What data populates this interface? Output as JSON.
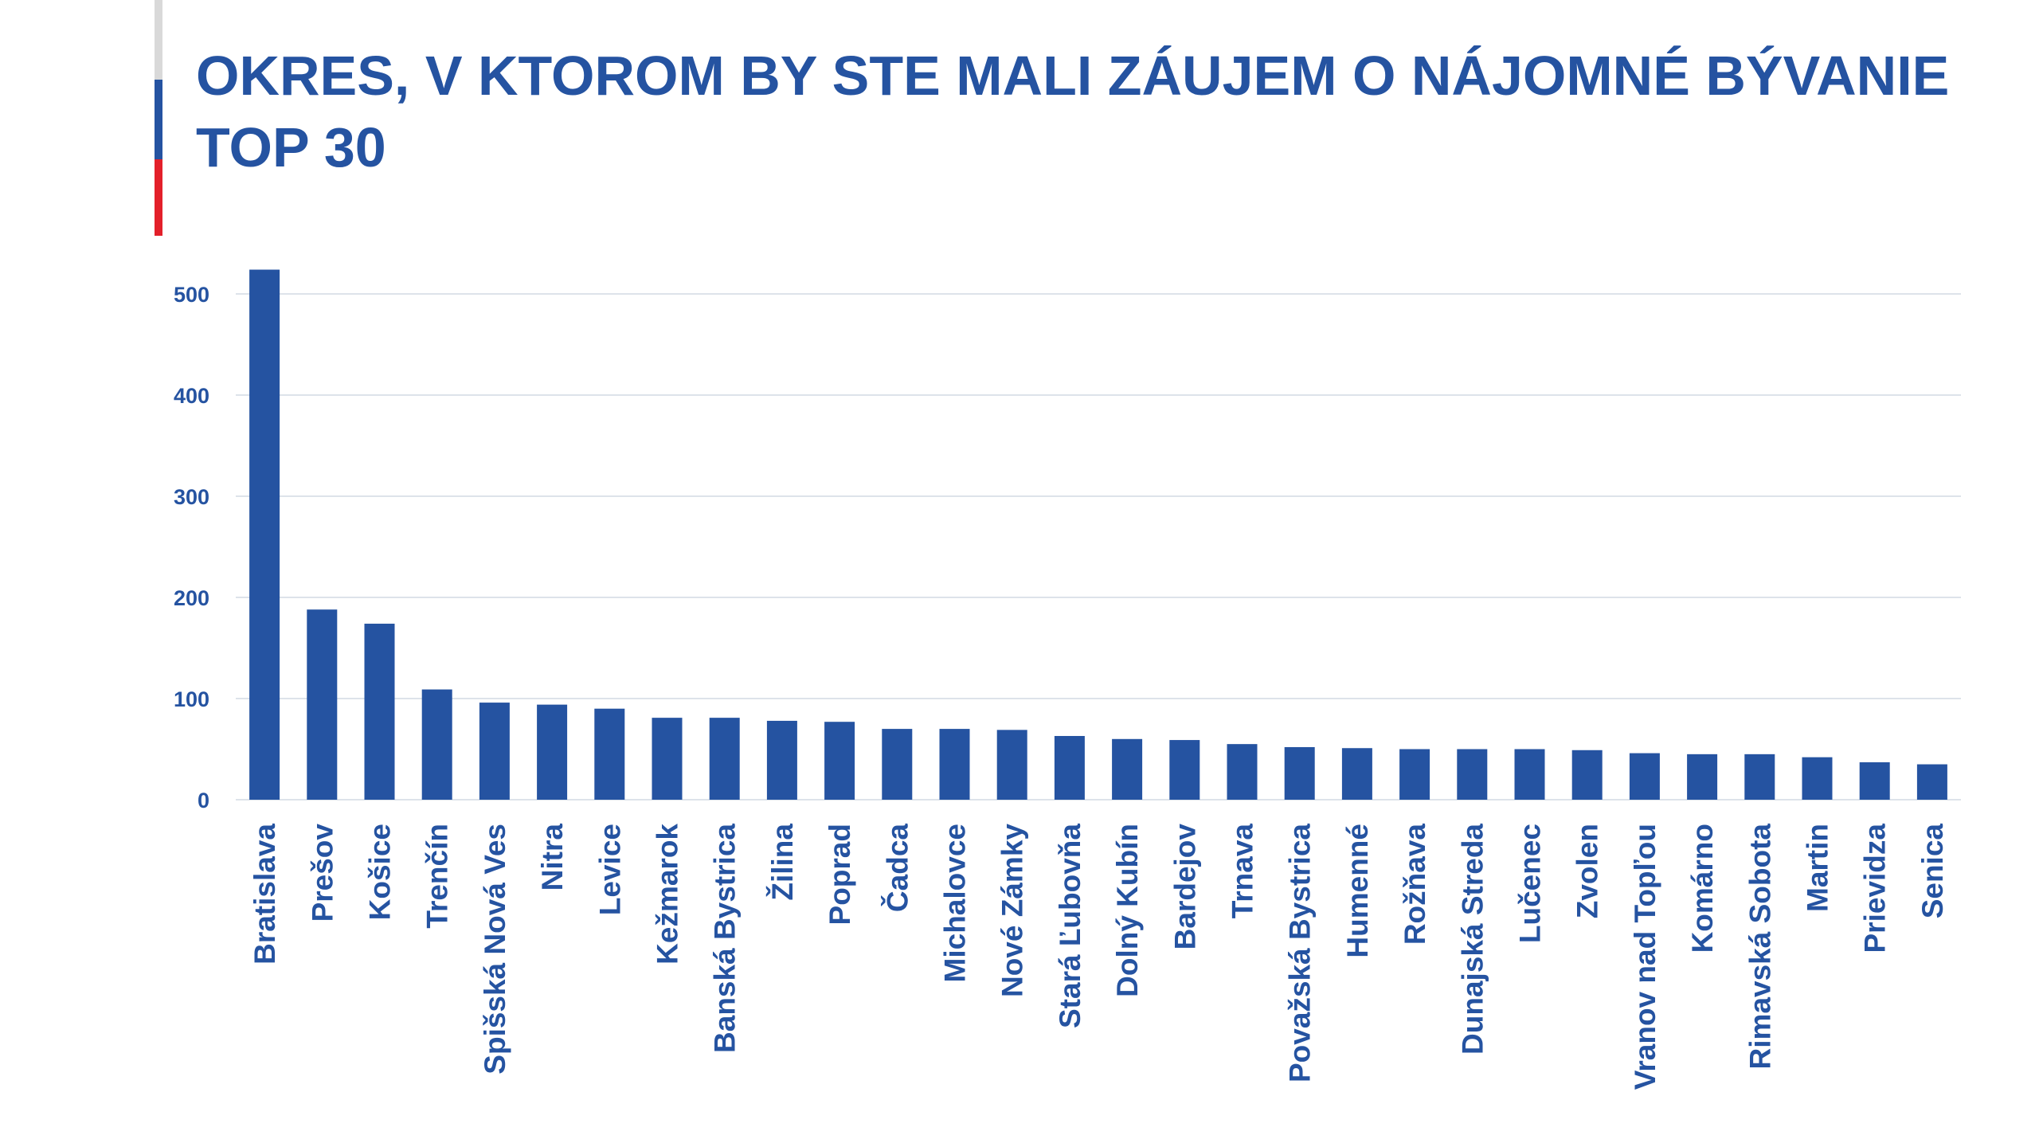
{
  "title": {
    "line1": "OKRES, V KTOROM BY STE MALI ZÁUJEM O NÁJOMNÉ BÝVANIE",
    "line2": "TOP 30"
  },
  "colors": {
    "accent": "#2553a1",
    "accent_gray": "#d9d9d9",
    "accent_red": "#e3202a",
    "gridline": "#dde3ea"
  },
  "chart_data": {
    "type": "bar",
    "categories": [
      "Bratislava",
      "Prešov",
      "Košice",
      "Trenčín",
      "Spišská Nová Ves",
      "Nitra",
      "Levice",
      "Kežmarok",
      "Banská Bystrica",
      "Žilina",
      "Poprad",
      "Čadca",
      "Michalovce",
      "Nové Zámky",
      "Stará Ľubovňa",
      "Dolný Kubín",
      "Bardejov",
      "Trnava",
      "Považská Bystrica",
      "Humenné",
      "Rožňava",
      "Dunajská Streda",
      "Lučenec",
      "Zvolen",
      "Vranov nad Topľou",
      "Komárno",
      "Rimavská Sobota",
      "Martin",
      "Prievidza",
      "Senica"
    ],
    "values": [
      524,
      188,
      174,
      109,
      96,
      94,
      90,
      81,
      81,
      78,
      77,
      70,
      70,
      69,
      63,
      60,
      59,
      55,
      52,
      51,
      50,
      50,
      50,
      49,
      46,
      45,
      45,
      42,
      37,
      35
    ],
    "yticks": [
      0,
      100,
      200,
      300,
      400,
      500
    ],
    "ylim": [
      0,
      550
    ],
    "grid": true,
    "legend": "none",
    "bar_color": "#2553a1"
  }
}
